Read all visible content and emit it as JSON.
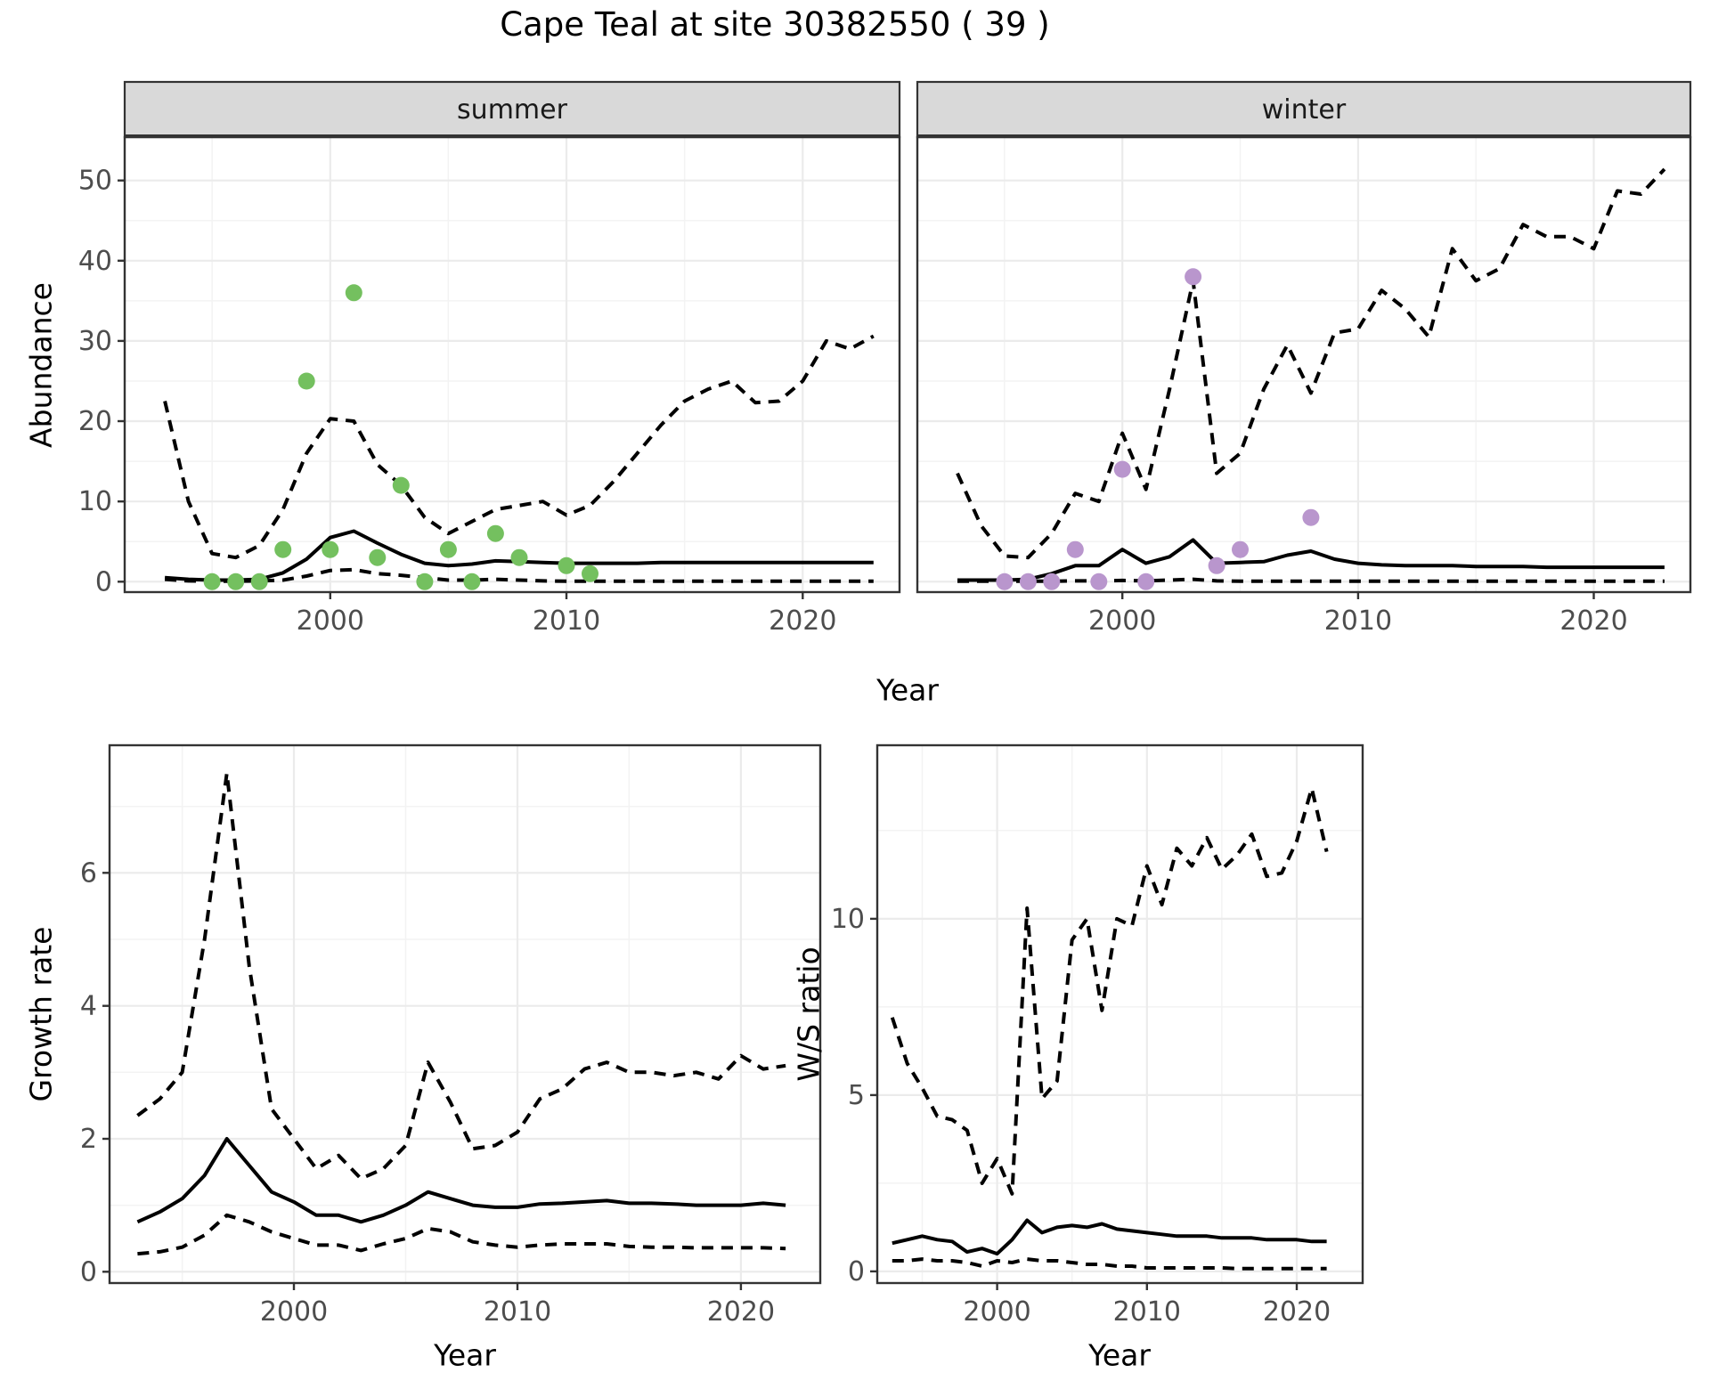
{
  "title": "Cape Teal at site 30382550 ( 39 )",
  "colors": {
    "summer_point": "#74c05f",
    "winter_point": "#b996cd",
    "line": "#000000",
    "strip_fill": "#d9d9d9",
    "panel_border": "#333333",
    "grid_major": "#ebebeb",
    "grid_minor": "#f3f3f3",
    "axis_text": "#4d4d4d"
  },
  "facets": {
    "summer": "summer",
    "winter": "winter"
  },
  "axis_titles": {
    "abundance": "Abundance",
    "year_top": "Year",
    "growth": "Growth rate",
    "ws": "W/S ratio",
    "year_bottom_left": "Year",
    "year_bottom_right": "Year"
  },
  "chart_data": [
    {
      "id": "abundance-summer",
      "type": "line",
      "facet_label": "summer",
      "xlabel": "Year",
      "ylabel": "Abundance",
      "xlim": [
        1991.3,
        2024.1
      ],
      "ylim": [
        -1.3,
        55.4
      ],
      "xticks": [
        2000,
        2010,
        2020
      ],
      "xticks_minor": [
        1995,
        2005,
        2015
      ],
      "yticks": [
        0,
        10,
        20,
        30,
        40,
        50
      ],
      "yticks_minor": [
        5,
        15,
        25,
        35,
        45
      ],
      "ytick_labels": true,
      "grid": true,
      "legend": "none",
      "series": [
        {
          "name": "modelled_mean",
          "style": "solid",
          "x": [
            1993,
            1994,
            1995,
            1996,
            1997,
            1998,
            1999,
            2000,
            2001,
            2002,
            2003,
            2004,
            2005,
            2006,
            2007,
            2008,
            2009,
            2010,
            2011,
            2012,
            2013,
            2014,
            2015,
            2016,
            2017,
            2018,
            2019,
            2020,
            2021,
            2022,
            2023
          ],
          "y": [
            0.5,
            0.3,
            0.2,
            0.2,
            0.3,
            1.1,
            2.8,
            5.5,
            6.3,
            4.8,
            3.4,
            2.3,
            2.0,
            2.2,
            2.6,
            2.5,
            2.4,
            2.3,
            2.3,
            2.3,
            2.3,
            2.4,
            2.4,
            2.4,
            2.4,
            2.4,
            2.4,
            2.4,
            2.4,
            2.4,
            2.4
          ]
        },
        {
          "name": "upper_ci",
          "style": "dashed",
          "x": [
            1993,
            1994,
            1995,
            1996,
            1997,
            1998,
            1999,
            2000,
            2001,
            2002,
            2003,
            2004,
            2005,
            2006,
            2007,
            2008,
            2009,
            2010,
            2011,
            2012,
            2013,
            2014,
            2015,
            2016,
            2017,
            2018,
            2019,
            2020,
            2021,
            2022,
            2023
          ],
          "y": [
            22.5,
            10,
            3.5,
            3,
            4.5,
            9,
            16,
            20.3,
            20,
            14.6,
            12,
            8,
            6,
            7.5,
            9,
            9.5,
            10,
            8.3,
            9.5,
            12.5,
            16,
            19.5,
            22.5,
            24,
            25,
            22.3,
            22.5,
            25,
            30,
            29,
            30.6
          ]
        },
        {
          "name": "lower_ci",
          "style": "dashed",
          "x": [
            1993,
            1994,
            1995,
            1996,
            1997,
            1998,
            1999,
            2000,
            2001,
            2002,
            2003,
            2004,
            2005,
            2006,
            2007,
            2008,
            2009,
            2010,
            2011,
            2012,
            2013,
            2014,
            2015,
            2016,
            2017,
            2018,
            2019,
            2020,
            2021,
            2022,
            2023
          ],
          "y": [
            0.3,
            0.1,
            0.05,
            0.05,
            0.1,
            0.2,
            0.7,
            1.4,
            1.5,
            1.0,
            0.8,
            0.5,
            0.2,
            0.2,
            0.3,
            0.2,
            0.1,
            0.05,
            0.05,
            0.05,
            0.05,
            0.05,
            0.05,
            0.05,
            0.05,
            0.05,
            0.05,
            0.05,
            0.05,
            0.05,
            0.05
          ]
        }
      ],
      "points": {
        "name": "observed_counts",
        "color_key": "summer_point",
        "x": [
          1995,
          1996,
          1997,
          1998,
          1999,
          2000,
          2001,
          2002,
          2003,
          2004,
          2005,
          2006,
          2007,
          2008,
          2010,
          2011
        ],
        "y": [
          0,
          0,
          0,
          4,
          25,
          4,
          36,
          3,
          12,
          0,
          4,
          0,
          6,
          3,
          2,
          1
        ]
      }
    },
    {
      "id": "abundance-winter",
      "type": "line",
      "facet_label": "winter",
      "xlabel": "Year",
      "ylabel": "Abundance",
      "xlim": [
        1991.3,
        2024.1
      ],
      "ylim": [
        -1.3,
        55.4
      ],
      "xticks": [
        2000,
        2010,
        2020
      ],
      "xticks_minor": [
        1995,
        2005,
        2015
      ],
      "yticks": [
        0,
        10,
        20,
        30,
        40,
        50
      ],
      "yticks_minor": [
        5,
        15,
        25,
        35,
        45
      ],
      "ytick_labels": false,
      "grid": true,
      "legend": "none",
      "series": [
        {
          "name": "modelled_mean",
          "style": "solid",
          "x": [
            1993,
            1994,
            1995,
            1996,
            1997,
            1998,
            1999,
            2000,
            2001,
            2002,
            2003,
            2004,
            2005,
            2006,
            2007,
            2008,
            2009,
            2010,
            2011,
            2012,
            2013,
            2014,
            2015,
            2016,
            2017,
            2018,
            2019,
            2020,
            2021,
            2022,
            2023
          ],
          "y": [
            0.2,
            0.2,
            0.2,
            0.3,
            1.0,
            2.0,
            2.0,
            4.0,
            2.3,
            3.1,
            5.2,
            2.3,
            2.4,
            2.5,
            3.3,
            3.8,
            2.8,
            2.3,
            2.1,
            2.0,
            2.0,
            2.0,
            1.9,
            1.9,
            1.9,
            1.8,
            1.8,
            1.8,
            1.8,
            1.8,
            1.8
          ]
        },
        {
          "name": "upper_ci",
          "style": "dashed",
          "x": [
            1993,
            1994,
            1995,
            1996,
            1997,
            1998,
            1999,
            2000,
            2001,
            2002,
            2003,
            2004,
            2005,
            2006,
            2007,
            2008,
            2009,
            2010,
            2011,
            2012,
            2013,
            2014,
            2015,
            2016,
            2017,
            2018,
            2019,
            2020,
            2021,
            2022,
            2023
          ],
          "y": [
            13.5,
            7.0,
            3.2,
            3.0,
            6.0,
            11.0,
            10.0,
            18.5,
            11.5,
            24.0,
            37.5,
            13.5,
            16.0,
            24.0,
            29.5,
            23.5,
            31.0,
            31.5,
            36.3,
            34.0,
            30.5,
            41.5,
            37.5,
            39.0,
            44.5,
            43.0,
            43.0,
            41.5,
            48.7,
            48.3,
            51.4
          ]
        },
        {
          "name": "lower_ci",
          "style": "dashed",
          "x": [
            1993,
            1994,
            1995,
            1996,
            1997,
            1998,
            1999,
            2000,
            2001,
            2002,
            2003,
            2004,
            2005,
            2006,
            2007,
            2008,
            2009,
            2010,
            2011,
            2012,
            2013,
            2014,
            2015,
            2016,
            2017,
            2018,
            2019,
            2020,
            2021,
            2022,
            2023
          ],
          "y": [
            0.05,
            0.05,
            0.05,
            0.05,
            0.05,
            0.1,
            0.1,
            0.15,
            0.1,
            0.2,
            0.3,
            0.1,
            0.05,
            0.05,
            0.05,
            0.05,
            0.05,
            0.05,
            0.05,
            0.05,
            0.05,
            0.05,
            0.05,
            0.05,
            0.05,
            0.05,
            0.05,
            0.05,
            0.05,
            0.05,
            0.05
          ]
        }
      ],
      "points": {
        "name": "observed_counts",
        "color_key": "winter_point",
        "x": [
          1995,
          1996,
          1997,
          1998,
          1999,
          2000,
          2001,
          2003,
          2004,
          2005,
          2008
        ],
        "y": [
          0,
          0,
          0,
          4,
          0,
          14,
          0,
          38,
          2,
          4,
          8
        ]
      }
    },
    {
      "id": "growth-rate",
      "type": "line",
      "facet_label": null,
      "xlabel": "Year",
      "ylabel": "Growth rate",
      "xlim": [
        1991.75,
        2023.55
      ],
      "ylim": [
        -0.17,
        7.92
      ],
      "xticks": [
        2000,
        2010,
        2020
      ],
      "xticks_minor": [
        1995,
        2005,
        2015
      ],
      "yticks": [
        0,
        2,
        4,
        6
      ],
      "yticks_minor": [
        1,
        3,
        5,
        7
      ],
      "ytick_labels": true,
      "grid": true,
      "legend": "none",
      "series": [
        {
          "name": "growth_rate_mean",
          "style": "solid",
          "x": [
            1993,
            1994,
            1995,
            1996,
            1997,
            1998,
            1999,
            2000,
            2001,
            2002,
            2003,
            2004,
            2005,
            2006,
            2007,
            2008,
            2009,
            2010,
            2011,
            2012,
            2013,
            2014,
            2015,
            2016,
            2017,
            2018,
            2019,
            2020,
            2021,
            2022
          ],
          "y": [
            0.75,
            0.9,
            1.1,
            1.45,
            2.0,
            1.6,
            1.2,
            1.05,
            0.85,
            0.85,
            0.75,
            0.85,
            1.0,
            1.2,
            1.1,
            1.0,
            0.97,
            0.97,
            1.02,
            1.03,
            1.05,
            1.07,
            1.03,
            1.03,
            1.02,
            1.0,
            1.0,
            1.0,
            1.03,
            1.0
          ]
        },
        {
          "name": "upper_ci",
          "style": "dashed",
          "x": [
            1993,
            1994,
            1995,
            1996,
            1997,
            1998,
            1999,
            2000,
            2001,
            2002,
            2003,
            2004,
            2005,
            2006,
            2007,
            2008,
            2009,
            2010,
            2011,
            2012,
            2013,
            2014,
            2015,
            2016,
            2017,
            2018,
            2019,
            2020,
            2021,
            2022
          ],
          "y": [
            2.35,
            2.6,
            3.0,
            5.0,
            7.5,
            4.6,
            2.45,
            2.0,
            1.55,
            1.75,
            1.4,
            1.55,
            1.9,
            3.15,
            2.55,
            1.85,
            1.9,
            2.1,
            2.6,
            2.75,
            3.05,
            3.15,
            3.0,
            3.0,
            2.95,
            3.0,
            2.9,
            3.25,
            3.05,
            3.1
          ]
        },
        {
          "name": "lower_ci",
          "style": "dashed",
          "x": [
            1993,
            1994,
            1995,
            1996,
            1997,
            1998,
            1999,
            2000,
            2001,
            2002,
            2003,
            2004,
            2005,
            2006,
            2007,
            2008,
            2009,
            2010,
            2011,
            2012,
            2013,
            2014,
            2015,
            2016,
            2017,
            2018,
            2019,
            2020,
            2021,
            2022
          ],
          "y": [
            0.27,
            0.3,
            0.37,
            0.55,
            0.85,
            0.75,
            0.6,
            0.5,
            0.4,
            0.4,
            0.32,
            0.42,
            0.5,
            0.65,
            0.6,
            0.45,
            0.4,
            0.37,
            0.4,
            0.42,
            0.42,
            0.42,
            0.38,
            0.37,
            0.37,
            0.36,
            0.36,
            0.36,
            0.36,
            0.35
          ]
        }
      ],
      "points": null
    },
    {
      "id": "ws-ratio",
      "type": "line",
      "facet_label": null,
      "xlabel": "Year",
      "ylabel": "W/S ratio",
      "xlim": [
        1992.0,
        2024.4
      ],
      "ylim": [
        -0.33,
        14.92
      ],
      "xticks": [
        2000,
        2010,
        2020
      ],
      "xticks_minor": [
        1995,
        2005,
        2015
      ],
      "yticks": [
        0,
        5,
        10
      ],
      "yticks_minor": [
        2.5,
        7.5,
        12.5
      ],
      "ytick_labels": true,
      "grid": true,
      "legend": "none",
      "series": [
        {
          "name": "ws_ratio_mean",
          "style": "solid",
          "x": [
            1993,
            1994,
            1995,
            1996,
            1997,
            1998,
            1999,
            2000,
            2001,
            2002,
            2003,
            2004,
            2005,
            2006,
            2007,
            2008,
            2009,
            2010,
            2011,
            2012,
            2013,
            2014,
            2015,
            2016,
            2017,
            2018,
            2019,
            2020,
            2021,
            2022
          ],
          "y": [
            0.8,
            0.9,
            1.0,
            0.9,
            0.85,
            0.55,
            0.65,
            0.5,
            0.9,
            1.45,
            1.1,
            1.25,
            1.3,
            1.25,
            1.35,
            1.2,
            1.15,
            1.1,
            1.05,
            1.0,
            1.0,
            1.0,
            0.95,
            0.95,
            0.95,
            0.9,
            0.9,
            0.9,
            0.85,
            0.85
          ]
        },
        {
          "name": "upper_ci",
          "style": "dashed",
          "x": [
            1993,
            1994,
            1995,
            1996,
            1997,
            1998,
            1999,
            2000,
            2001,
            2002,
            2003,
            2004,
            2005,
            2006,
            2007,
            2008,
            2009,
            2010,
            2011,
            2012,
            2013,
            2014,
            2015,
            2016,
            2017,
            2018,
            2019,
            2020,
            2021,
            2022
          ],
          "y": [
            7.2,
            5.9,
            5.2,
            4.4,
            4.3,
            4.0,
            2.5,
            3.2,
            2.2,
            10.3,
            4.9,
            5.4,
            9.4,
            10.0,
            7.4,
            10.0,
            9.8,
            11.5,
            10.4,
            12.0,
            11.5,
            12.3,
            11.4,
            11.8,
            12.4,
            11.2,
            11.3,
            12.2,
            13.7,
            11.9
          ]
        },
        {
          "name": "lower_ci",
          "style": "dashed",
          "x": [
            1993,
            1994,
            1995,
            1996,
            1997,
            1998,
            1999,
            2000,
            2001,
            2002,
            2003,
            2004,
            2005,
            2006,
            2007,
            2008,
            2009,
            2010,
            2011,
            2012,
            2013,
            2014,
            2015,
            2016,
            2017,
            2018,
            2019,
            2020,
            2021,
            2022
          ],
          "y": [
            0.3,
            0.3,
            0.35,
            0.3,
            0.3,
            0.25,
            0.15,
            0.3,
            0.25,
            0.35,
            0.3,
            0.3,
            0.25,
            0.2,
            0.2,
            0.15,
            0.15,
            0.1,
            0.1,
            0.1,
            0.1,
            0.1,
            0.1,
            0.08,
            0.08,
            0.08,
            0.08,
            0.08,
            0.08,
            0.08
          ]
        }
      ],
      "points": null
    }
  ]
}
